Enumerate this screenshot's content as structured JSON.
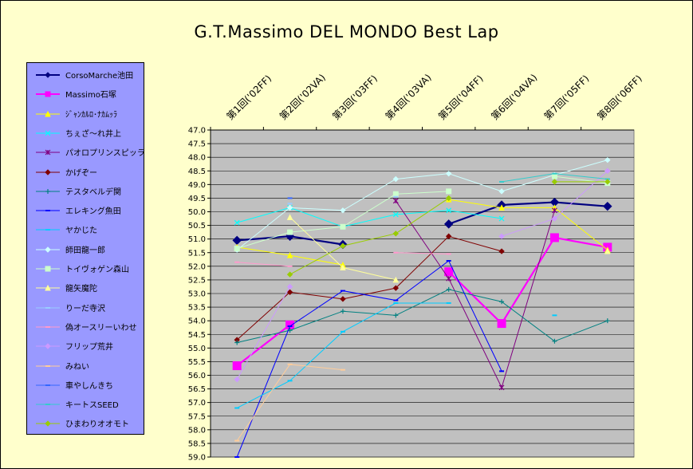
{
  "chart_data": {
    "type": "line",
    "title": "G.T.Massimo DEL MONDO Best Lap",
    "categories": [
      "第1回('02FF)",
      "第2回('02VA)",
      "第3回('03FF)",
      "第4回('03VA)",
      "第5回('04FF)",
      "第6回('04VA)",
      "第7回('05FF)",
      "第8回('06FF)"
    ],
    "y_ticks": [
      "47.0",
      "47.5",
      "48.0",
      "48.5",
      "49.0",
      "49.5",
      "50.0",
      "50.5",
      "51.0",
      "51.5",
      "52.0",
      "52.5",
      "53.0",
      "53.5",
      "54.0",
      "54.5",
      "55.0",
      "55.5",
      "56.0",
      "56.5",
      "57.0",
      "57.5",
      "58.0",
      "58.5",
      "59.0"
    ],
    "ylim": [
      47.0,
      59.0
    ],
    "y_reversed": true,
    "grid": true,
    "legend_position": "left",
    "series": [
      {
        "name": "CorsoMarche池田",
        "color": "#000080",
        "marker": "diamond",
        "values": [
          51.05,
          50.9,
          51.2,
          null,
          50.45,
          49.75,
          49.65,
          49.8
        ]
      },
      {
        "name": "Massimo石塚",
        "color": "#FF00FF",
        "marker": "square",
        "values": [
          55.65,
          54.15,
          null,
          null,
          52.2,
          54.1,
          50.95,
          51.3
        ]
      },
      {
        "name": "ｼﾞｬﾝｶﾙﾛ･ﾅｶﾑｯﾗ",
        "color": "#FFFF00",
        "marker": "triangle",
        "values": [
          51.3,
          51.6,
          51.95,
          null,
          49.55,
          49.85,
          49.85,
          51.4
        ]
      },
      {
        "name": "ちぇざ～れ井上",
        "color": "#00FFFF",
        "marker": "x",
        "values": [
          50.4,
          49.85,
          50.55,
          50.1,
          49.95,
          50.25,
          null,
          null
        ]
      },
      {
        "name": "パオロプリンスピッラ",
        "color": "#800080",
        "marker": "star",
        "values": [
          null,
          null,
          null,
          49.6,
          52.45,
          56.45,
          49.95,
          null
        ]
      },
      {
        "name": "かげぞー",
        "color": "#800000",
        "marker": "diamond",
        "values": [
          54.7,
          52.95,
          53.2,
          52.8,
          50.9,
          51.45,
          null,
          null
        ]
      },
      {
        "name": "テスタベルデ関",
        "color": "#008080",
        "marker": "plus",
        "values": [
          54.8,
          54.35,
          53.65,
          53.8,
          52.85,
          53.3,
          54.75,
          54.0
        ]
      },
      {
        "name": "エレキング魚田",
        "color": "#0000FF",
        "marker": "dash",
        "values": [
          59.0,
          54.2,
          52.9,
          53.25,
          51.8,
          55.85,
          null,
          null
        ]
      },
      {
        "name": "ヤかじた",
        "color": "#00CCFF",
        "marker": "dash",
        "values": [
          57.2,
          56.2,
          54.4,
          53.35,
          53.35,
          null,
          53.8,
          null
        ]
      },
      {
        "name": "師田龍一郎",
        "color": "#CCFFFF",
        "marker": "diamond",
        "values": [
          51.4,
          49.85,
          49.95,
          48.8,
          48.6,
          49.25,
          48.65,
          48.1
        ]
      },
      {
        "name": "トイヴォゲン森山",
        "color": "#CCFFCC",
        "marker": "square",
        "values": [
          51.35,
          50.75,
          50.55,
          49.35,
          49.25,
          null,
          48.7,
          48.95
        ]
      },
      {
        "name": "龍矢魔陀",
        "color": "#FFFF99",
        "marker": "triangle",
        "values": [
          null,
          50.2,
          52.05,
          52.5,
          null,
          null,
          null,
          51.45
        ]
      },
      {
        "name": "りーだ寺沢",
        "color": "#99CCFF",
        "marker": "dash",
        "values": [
          null,
          49.7,
          null,
          49.45,
          null,
          null,
          null,
          null
        ]
      },
      {
        "name": "偽オースリーいわせ",
        "color": "#FF99CC",
        "marker": "dash",
        "values": [
          51.85,
          52.0,
          null,
          51.5,
          51.55,
          null,
          null,
          null
        ]
      },
      {
        "name": "フリップ荒井",
        "color": "#CC99FF",
        "marker": "diamond",
        "values": [
          56.15,
          52.75,
          null,
          null,
          null,
          50.9,
          50.25,
          48.5
        ]
      },
      {
        "name": "みねい",
        "color": "#FFCC99",
        "marker": "dash",
        "values": [
          58.4,
          55.6,
          55.8,
          null,
          null,
          null,
          null,
          null
        ]
      },
      {
        "name": "車やしんきち",
        "color": "#3366FF",
        "marker": "dash",
        "values": [
          null,
          49.5,
          null,
          null,
          null,
          null,
          null,
          null
        ]
      },
      {
        "name": "キートスSEED",
        "color": "#33CCCC",
        "marker": "dash",
        "values": [
          null,
          null,
          null,
          null,
          null,
          48.9,
          48.6,
          48.8
        ]
      },
      {
        "name": "ひまわりオオモト",
        "color": "#99CC00",
        "marker": "diamond",
        "values": [
          null,
          52.3,
          51.25,
          50.8,
          49.5,
          null,
          48.9,
          48.9
        ]
      }
    ]
  }
}
